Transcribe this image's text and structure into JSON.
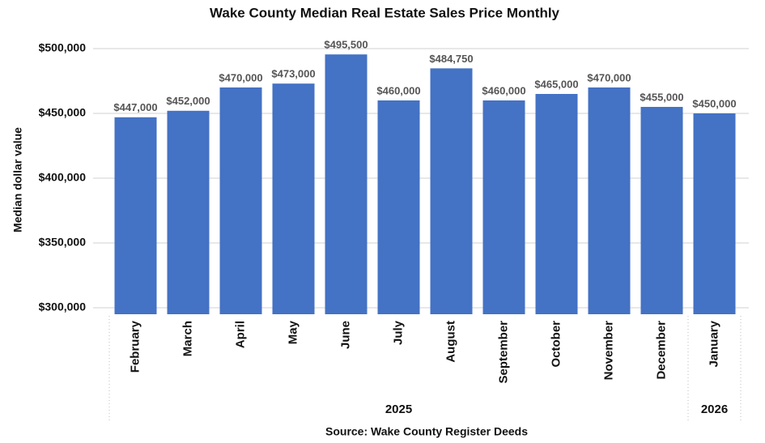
{
  "chart_data": {
    "type": "bar",
    "title": "Wake County Median Real Estate Sales Price Monthly",
    "ylabel": "Median dollar value",
    "source": "Source: Wake County Register Deeds",
    "category_groups": [
      {
        "name": "2025",
        "categories": [
          "February",
          "March",
          "April",
          "May",
          "June",
          "July",
          "August",
          "September",
          "October",
          "November",
          "December"
        ]
      },
      {
        "name": "2026",
        "categories": [
          "January"
        ]
      }
    ],
    "values": [
      447000,
      452000,
      470000,
      473000,
      495500,
      460000,
      484750,
      460000,
      465000,
      470000,
      455000,
      450000
    ],
    "value_labels": [
      "$447,000",
      "$452,000",
      "$470,000",
      "$473,000",
      "$495,500",
      "$460,000",
      "$484,750",
      "$460,000",
      "$465,000",
      "$470,000",
      "$455,000",
      "$450,000"
    ],
    "color": "#4472c4",
    "ylim": [
      295000,
      500000
    ],
    "yticks": [
      {
        "value": 300000,
        "label": "$300,000"
      },
      {
        "value": 350000,
        "label": "$350,000"
      },
      {
        "value": 400000,
        "label": "$400,000"
      },
      {
        "value": 450000,
        "label": "$450,000"
      },
      {
        "value": 500000,
        "label": "$500,000"
      }
    ],
    "grid": true
  }
}
